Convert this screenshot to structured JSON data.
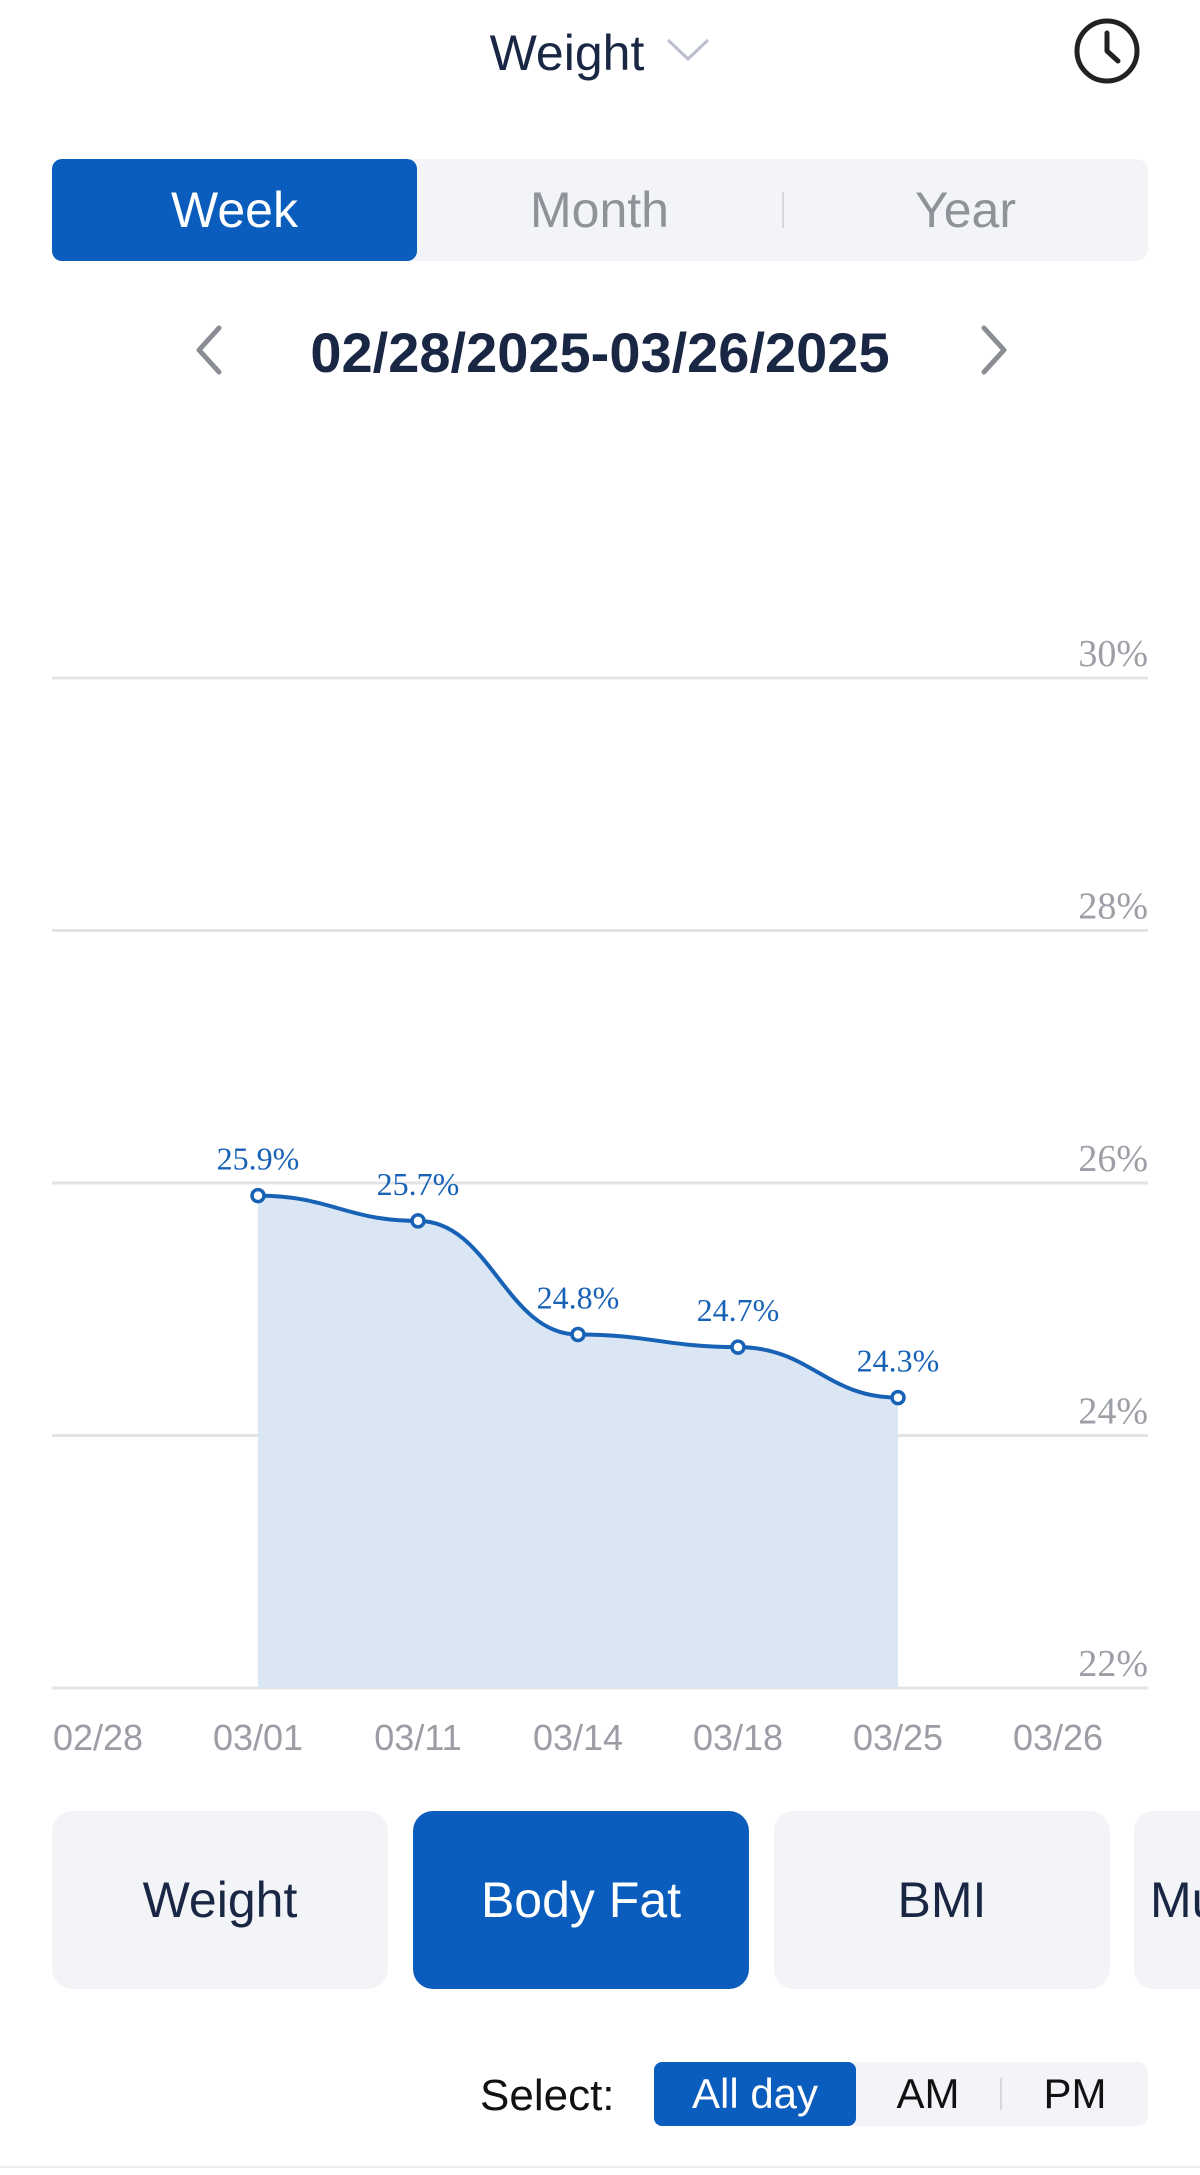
{
  "header": {
    "title": "Weight",
    "dropdown_icon": "chevron-down-icon",
    "history_icon": "clock-icon"
  },
  "period_tabs": {
    "selected": "Week",
    "items": [
      {
        "label": "Week"
      },
      {
        "label": "Month"
      },
      {
        "label": "Year"
      }
    ]
  },
  "date_nav": {
    "range": "02/28/2025-03/26/2025",
    "prev_icon": "chevron-left-icon",
    "next_icon": "chevron-right-icon"
  },
  "chart_data": {
    "type": "area",
    "x": [
      "02/28",
      "03/01",
      "03/11",
      "03/14",
      "03/18",
      "03/25",
      "03/26"
    ],
    "series": [
      {
        "x": [
          "03/01",
          "03/11",
          "03/14",
          "03/18",
          "03/25"
        ],
        "values": [
          25.9,
          25.7,
          24.8,
          24.7,
          24.3
        ],
        "labels": [
          "25.9%",
          "25.7%",
          "24.8%",
          "24.7%",
          "24.3%"
        ]
      }
    ],
    "y_ticks": [
      "30%",
      "28%",
      "26%",
      "24%",
      "22%"
    ],
    "y_tick_values": [
      30,
      28,
      26,
      24,
      22
    ],
    "ylim": [
      22,
      30
    ],
    "grid": true,
    "line_color": "#1862b6",
    "fill_color": "#dbe6f5",
    "grid_color": "#e2e4e8"
  },
  "metric_tabs": {
    "selected": "Body Fat",
    "items": [
      {
        "label": "Weight"
      },
      {
        "label": "Body Fat"
      },
      {
        "label": "BMI"
      },
      {
        "label": "Mu"
      }
    ]
  },
  "time_select": {
    "label": "Select:",
    "selected": "All day",
    "options": [
      {
        "label": "All day"
      },
      {
        "label": "AM"
      },
      {
        "label": "PM"
      }
    ]
  },
  "colors": {
    "accent": "#0a5cbd",
    "text_dark": "#1a2744",
    "text_muted": "#8f9298",
    "segment_bg": "#f3f4f7"
  }
}
